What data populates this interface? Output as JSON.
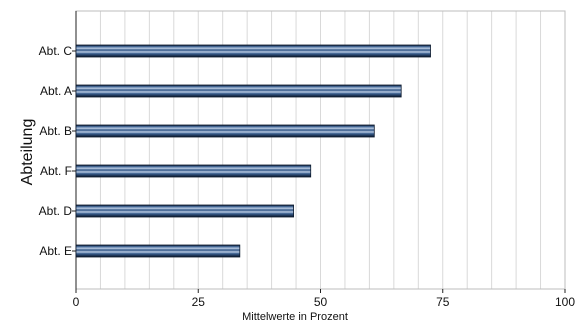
{
  "chart_data": {
    "type": "bar",
    "orientation": "horizontal",
    "categories": [
      "Abt. C",
      "Abt. A",
      "Abt. B",
      "Abt. F",
      "Abt. D",
      "Abt. E"
    ],
    "values": [
      72.5,
      66.5,
      61,
      48,
      44.5,
      33.5
    ],
    "xlabel": "Mittelwerte in Prozent",
    "ylabel": "Abteilung",
    "xlim": [
      0,
      100
    ],
    "xticks": [
      0,
      25,
      50,
      75,
      100
    ],
    "grid": true,
    "bar_color": "#3a5f8f",
    "bar_stripe_color": "#b9cbe3",
    "bar_edge_color": "#0d1a2c"
  }
}
